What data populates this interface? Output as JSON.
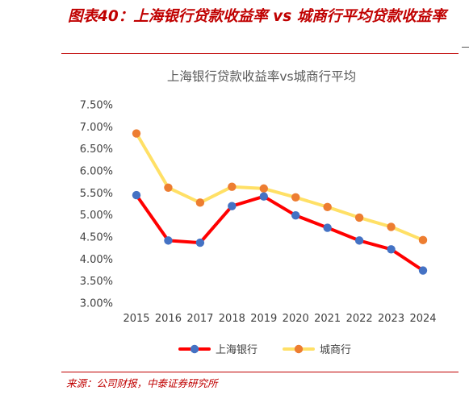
{
  "figure": {
    "title": "图表40：上海银行贷款收益率 vs 城商行平均贷款收益率",
    "source": "来源：公司财报，中泰证券研究所",
    "accent_color": "#c00000"
  },
  "chart_data": {
    "type": "line",
    "title": "上海银行贷款收益率vs城商行平均",
    "xlabel": "",
    "ylabel": "",
    "x": [
      "2015",
      "2016",
      "2017",
      "2018",
      "2019",
      "2020",
      "2021",
      "2022",
      "2023",
      "2024"
    ],
    "yticks": [
      "3.00%",
      "3.50%",
      "4.00%",
      "4.50%",
      "5.00%",
      "5.50%",
      "6.00%",
      "6.50%",
      "7.00%",
      "7.50%"
    ],
    "ylim": [
      3.0,
      7.5
    ],
    "unit": "%",
    "grid": false,
    "legend_position": "bottom",
    "series": [
      {
        "name": "上海银行",
        "line_color": "#ff0000",
        "marker_color": "#4472c4",
        "values": [
          5.45,
          4.42,
          4.37,
          5.2,
          5.42,
          4.99,
          4.71,
          4.42,
          4.22,
          3.74
        ]
      },
      {
        "name": "城商行",
        "line_color": "#ffe066",
        "marker_color": "#ed7d31",
        "values": [
          6.85,
          5.62,
          5.28,
          5.64,
          5.6,
          5.4,
          5.18,
          4.94,
          4.73,
          4.43
        ]
      }
    ]
  }
}
